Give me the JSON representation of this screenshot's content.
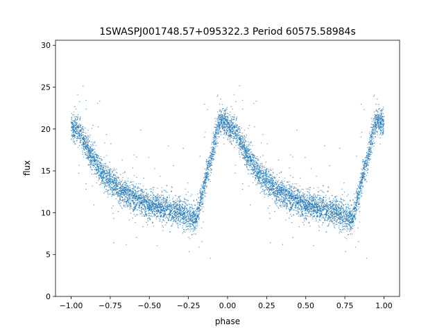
{
  "chart_data": {
    "type": "scatter",
    "title": "1SWASPJ001748.57+095322.3 Period 60575.58984s",
    "xlabel": "phase",
    "ylabel": "flux",
    "xlim": [
      -1.1,
      1.1
    ],
    "ylim": [
      0,
      30.6
    ],
    "xticks": [
      -1.0,
      -0.75,
      -0.5,
      -0.25,
      0.0,
      0.25,
      0.5,
      0.75,
      1.0
    ],
    "xtick_labels": [
      "−1.00",
      "−0.75",
      "−0.50",
      "−0.25",
      "0.00",
      "0.25",
      "0.50",
      "0.75",
      "1.00"
    ],
    "yticks": [
      0,
      5,
      10,
      15,
      20,
      25,
      30
    ],
    "ytick_labels": [
      "0",
      "5",
      "10",
      "15",
      "20",
      "25",
      "30"
    ],
    "grid": false,
    "legend": null,
    "point_color": "#1f77b4",
    "series": [
      {
        "phase_range": [
          -1.0,
          1.0
        ],
        "light_curve_profile": {
          "phase": [
            0.0,
            0.05,
            0.1,
            0.2,
            0.3,
            0.4,
            0.5,
            0.6,
            0.7,
            0.8,
            0.9,
            0.95,
            1.0
          ],
          "flux": [
            20.3,
            19.8,
            17.7,
            14.8,
            12.8,
            11.8,
            10.9,
            10.5,
            10.0,
            9.3,
            17.0,
            21.0,
            20.5
          ]
        },
        "scatter_sigma": 0.8,
        "n_points_per_cycle": 4000
      }
    ]
  }
}
